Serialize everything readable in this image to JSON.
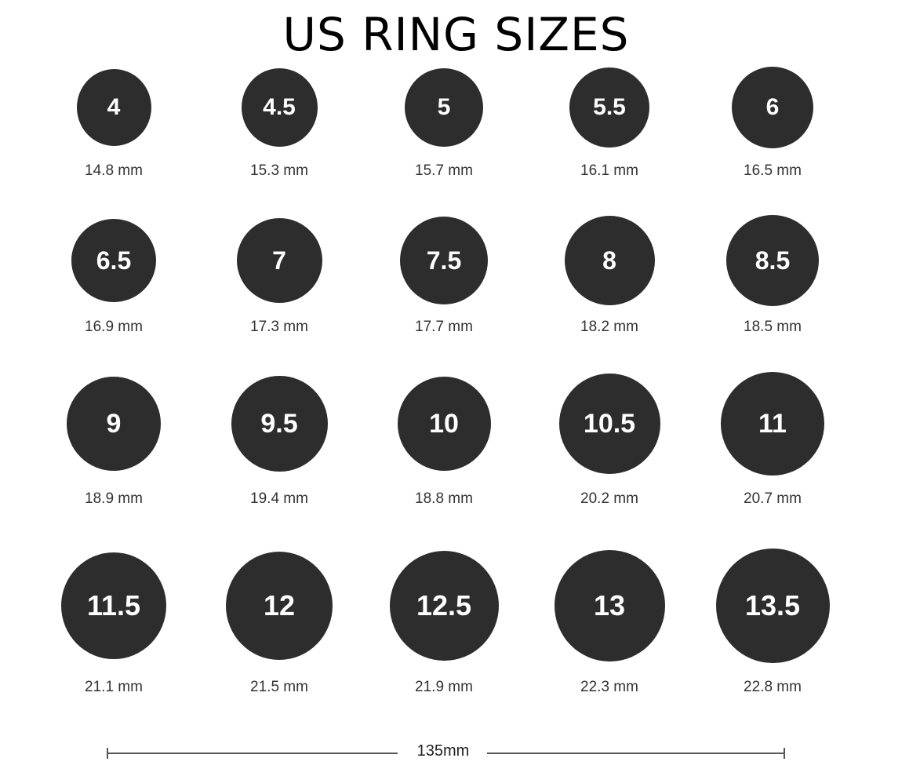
{
  "title": "US RING SIZES",
  "colors": {
    "ring_fill": "#2d2d2d",
    "ring_text": "#ffffff",
    "label_text": "#333333"
  },
  "rings": [
    {
      "size": "4",
      "diameter": "14.8 mm"
    },
    {
      "size": "4.5",
      "diameter": "15.3 mm"
    },
    {
      "size": "5",
      "diameter": "15.7 mm"
    },
    {
      "size": "5.5",
      "diameter": "16.1 mm"
    },
    {
      "size": "6",
      "diameter": "16.5 mm"
    },
    {
      "size": "6.5",
      "diameter": "16.9 mm"
    },
    {
      "size": "7",
      "diameter": "17.3 mm"
    },
    {
      "size": "7.5",
      "diameter": "17.7 mm"
    },
    {
      "size": "8",
      "diameter": "18.2 mm"
    },
    {
      "size": "8.5",
      "diameter": "18.5 mm"
    },
    {
      "size": "9",
      "diameter": "18.9 mm"
    },
    {
      "size": "9.5",
      "diameter": "19.4 mm"
    },
    {
      "size": "10",
      "diameter": "18.8 mm"
    },
    {
      "size": "10.5",
      "diameter": "20.2 mm"
    },
    {
      "size": "11",
      "diameter": "20.7 mm"
    },
    {
      "size": "11.5",
      "diameter": "21.1 mm"
    },
    {
      "size": "12",
      "diameter": "21.5 mm"
    },
    {
      "size": "12.5",
      "diameter": "21.9 mm"
    },
    {
      "size": "13",
      "diameter": "22.3 mm"
    },
    {
      "size": "13.5",
      "diameter": "22.8 mm"
    }
  ],
  "scale": {
    "label": "135mm"
  }
}
